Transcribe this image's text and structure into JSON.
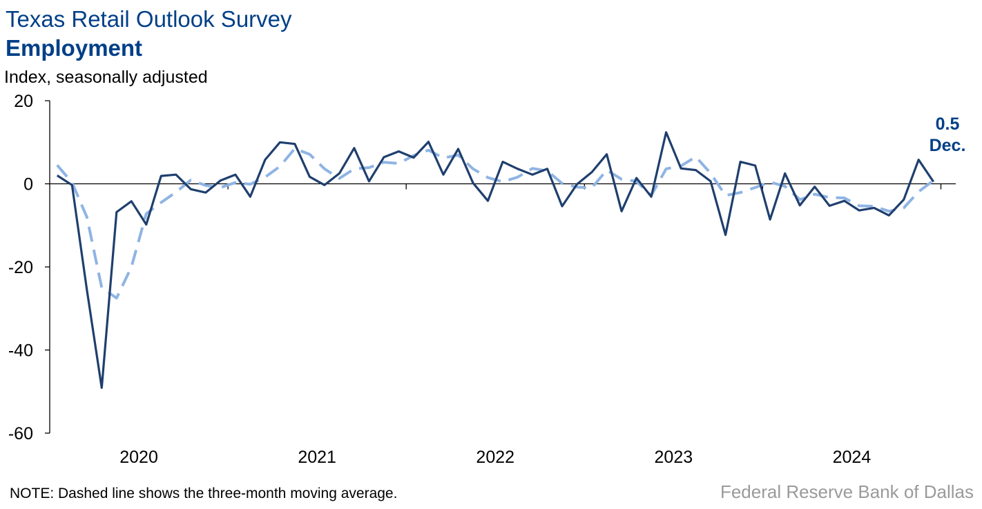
{
  "header": {
    "title": "Texas Retail Outlook Survey",
    "subtitle": "Employment",
    "unit": "Index, seasonally adjusted"
  },
  "footer": {
    "note": "NOTE: Dashed line shows the three-month moving average.",
    "source": "Federal Reserve Bank of Dallas"
  },
  "colors": {
    "primary_line": "#1f3f6e",
    "moving_avg_line": "#8fb4e3",
    "title": "#003f87",
    "source": "#9a9a9a"
  },
  "callout": {
    "value": "0.5",
    "month": "Dec."
  },
  "chart_data": {
    "type": "line",
    "ylim": [
      -60,
      20
    ],
    "yticks": [
      20,
      0,
      -20,
      -40,
      -60
    ],
    "xtick_labels": [
      "2020",
      "2021",
      "2022",
      "2023",
      "2024"
    ],
    "grid": false,
    "legend": "none",
    "x": [
      "2020-01",
      "2020-02",
      "2020-03",
      "2020-04",
      "2020-05",
      "2020-06",
      "2020-07",
      "2020-08",
      "2020-09",
      "2020-10",
      "2020-11",
      "2020-12",
      "2021-01",
      "2021-02",
      "2021-03",
      "2021-04",
      "2021-05",
      "2021-06",
      "2021-07",
      "2021-08",
      "2021-09",
      "2021-10",
      "2021-11",
      "2021-12",
      "2022-01",
      "2022-02",
      "2022-03",
      "2022-04",
      "2022-05",
      "2022-06",
      "2022-07",
      "2022-08",
      "2022-09",
      "2022-10",
      "2022-11",
      "2022-12",
      "2023-01",
      "2023-02",
      "2023-03",
      "2023-04",
      "2023-05",
      "2023-06",
      "2023-07",
      "2023-08",
      "2023-09",
      "2023-10",
      "2023-11",
      "2023-12",
      "2024-01",
      "2024-02",
      "2024-03",
      "2024-04",
      "2024-05",
      "2024-06",
      "2024-07",
      "2024-08",
      "2024-09",
      "2024-10",
      "2024-11",
      "2024-12"
    ],
    "series": [
      {
        "style": "solid",
        "values": [
          2,
          -0.3,
          -25.5,
          -49.1,
          -6.8,
          -4.2,
          -9.8,
          1.9,
          2.2,
          -1.3,
          -2.1,
          0.8,
          2.2,
          -3.1,
          5.8,
          10,
          9.6,
          1.7,
          -0.3,
          2.5,
          8.6,
          0.6,
          6.4,
          7.8,
          6.3,
          10.1,
          2.2,
          8.4,
          0.2,
          -4.1,
          5.3,
          3.6,
          2.2,
          3.6,
          -5.4,
          -0.1,
          2.8,
          7.1,
          -6.6,
          1.4,
          -3.1,
          12.4,
          3.7,
          3.3,
          0.6,
          -12.3,
          5.3,
          4.4,
          -8.6,
          2.5,
          -5.2,
          -0.7,
          -5.3,
          -4.1,
          -6.4,
          -5.8,
          -7.6,
          -3.8,
          5.8,
          0.5
        ]
      },
      {
        "style": "dashed",
        "values": [
          4.5,
          0.3,
          -8,
          -25,
          -27.5,
          -20,
          -7.2,
          -4.5,
          -2,
          0.9,
          -0.4,
          -0.9,
          0.3,
          -0.1,
          1.6,
          4.2,
          8.5,
          7.1,
          3.6,
          1.3,
          3.6,
          3.9,
          5.2,
          4.9,
          6.8,
          8.1,
          6.2,
          6.9,
          3.6,
          1.5,
          0.5,
          1.6,
          3.7,
          3.1,
          0.1,
          -0.8,
          -1,
          3.3,
          1.1,
          0.6,
          -2.8,
          3.6,
          4.3,
          6.5,
          2.5,
          -2.8,
          -2.1,
          -0.9,
          0.4,
          -0.6,
          -3.8,
          -2.5,
          -3.3,
          -3.4,
          -5.3,
          -5.4,
          -6.6,
          -5.8,
          -1.9,
          0.8
        ]
      }
    ]
  }
}
